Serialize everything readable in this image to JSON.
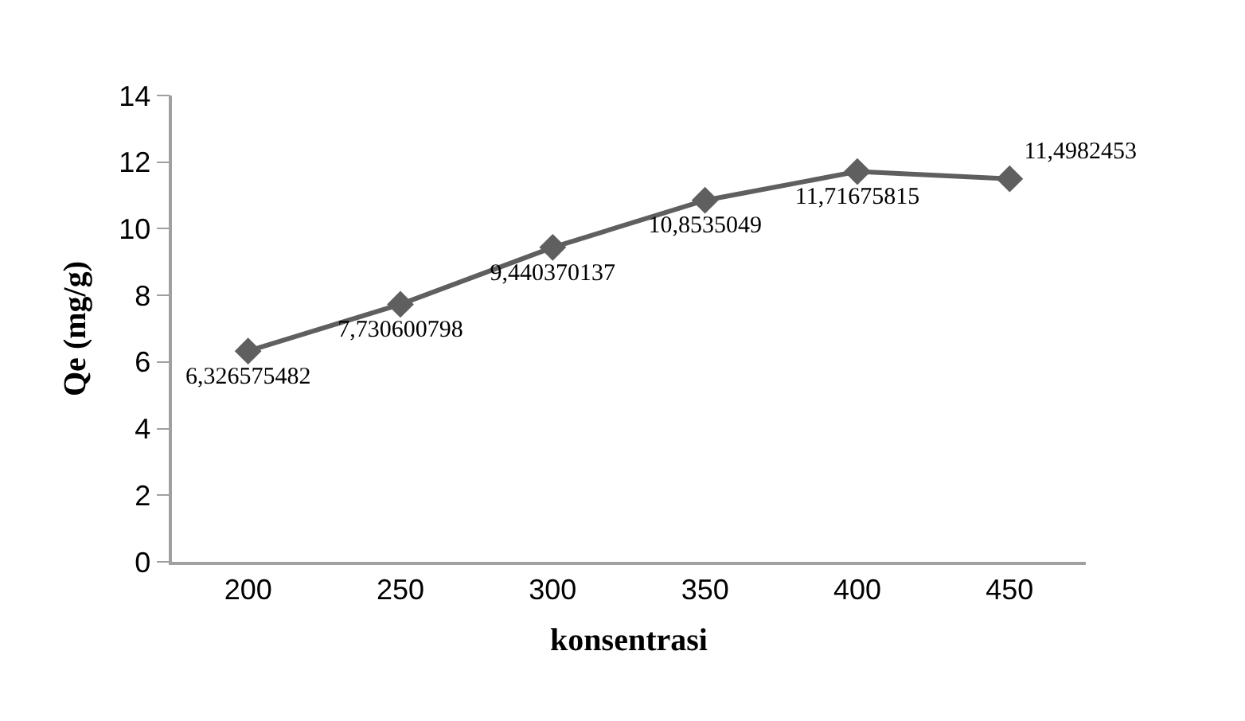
{
  "chart_data": {
    "type": "line",
    "xlabel": "konsentrasi",
    "ylabel": "Qe (mg/g)",
    "categories": [
      "200",
      "250",
      "300",
      "350",
      "400",
      "450"
    ],
    "series": [
      {
        "color": "#5f5f5f",
        "values": [
          6.326575482,
          7.730600798,
          9.440370137,
          10.8535049,
          11.71675815,
          11.4982453
        ],
        "value_labels": [
          "6,326575482",
          "7,730600798",
          "9,440370137",
          "10,8535049",
          "11,71675815",
          "11,4982453"
        ]
      }
    ],
    "ylim": [
      0,
      14
    ],
    "yticks": [
      0,
      2,
      4,
      6,
      8,
      10,
      12,
      14
    ],
    "marker": "diamond",
    "line_style": "solid"
  }
}
